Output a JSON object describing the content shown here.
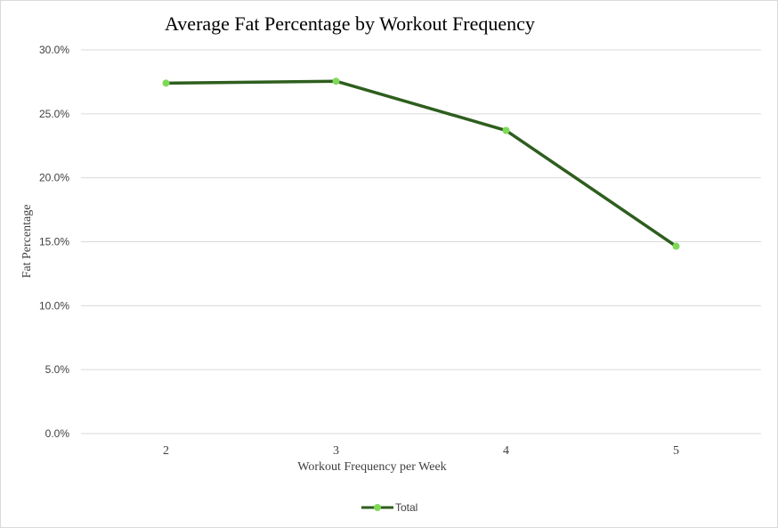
{
  "chart_data": {
    "type": "line",
    "title": "Average Fat Percentage by Workout Frequency",
    "xlabel": "Workout Frequency per Week",
    "ylabel": "Fat Percentage",
    "categories": [
      "2",
      "3",
      "4",
      "5"
    ],
    "series": [
      {
        "name": "Total",
        "values": [
          0.274,
          0.2755,
          0.237,
          0.1465
        ]
      }
    ],
    "ylim": [
      0,
      0.3
    ],
    "yticks": [
      0,
      0.05,
      0.1,
      0.15,
      0.2,
      0.25,
      0.3
    ],
    "ytick_labels": [
      "0.0%",
      "5.0%",
      "10.0%",
      "15.0%",
      "20.0%",
      "25.0%",
      "30.0%"
    ],
    "grid": true,
    "legend_position": "bottom",
    "colors": {
      "line": "#2e5e1e",
      "marker": "#7ed957",
      "grid": "#d9d9d9"
    }
  }
}
